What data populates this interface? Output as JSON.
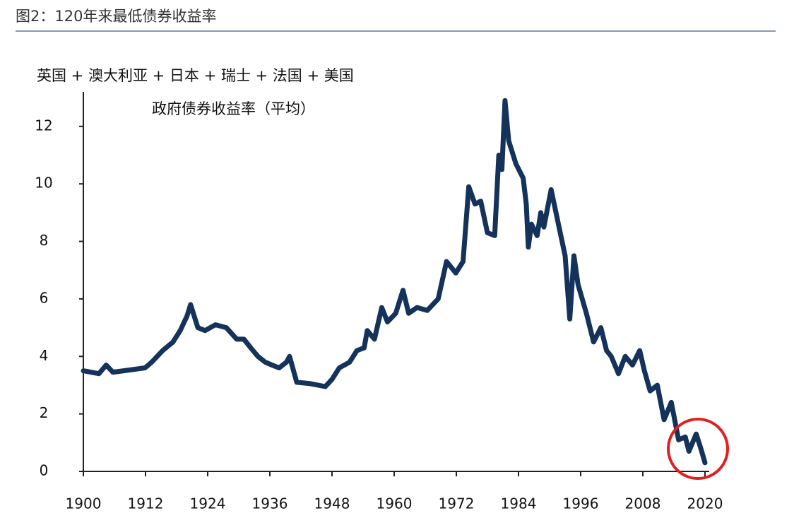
{
  "chart_data": {
    "type": "line",
    "title": "图2：120年来最低债券收益率",
    "subtitle": "英国 + 澳大利亚 + 日本 + 瑞士 + 法国 + 美国",
    "annotation": "政府债券收益率（平均）",
    "color": "#14325a",
    "x": [
      1900,
      1903,
      1904.4,
      1905.7,
      1907.8,
      1909.8,
      1911.9,
      1913.2,
      1915.3,
      1917.3,
      1918.7,
      1920,
      1920.7,
      1922.1,
      1923.5,
      1925.5,
      1927.6,
      1929.6,
      1931,
      1932.3,
      1933.7,
      1935.1,
      1936.4,
      1937.8,
      1939.2,
      1939.8,
      1941.2,
      1943.9,
      1946.7,
      1948,
      1949.4,
      1951.4,
      1952.8,
      1954.2,
      1954.8,
      1956.2,
      1957.6,
      1958.7,
      1960.3,
      1961.7,
      1962.8,
      1964.4,
      1966.4,
      1968.5,
      1970.1,
      1971.9,
      1973.3,
      1974.4,
      1975.6,
      1976.7,
      1978,
      1979.4,
      1980.2,
      1980.8,
      1981.4,
      1982.1,
      1983.5,
      1984.9,
      1985.5,
      1985.9,
      1986.5,
      1987.6,
      1988.3,
      1988.9,
      1990.3,
      1991.7,
      1993,
      1993.9,
      1994.7,
      1995.5,
      1997.1,
      1998.5,
      1999.9,
      2001,
      2001.9,
      2003.3,
      2004.6,
      2006,
      2007.4,
      2008.3,
      2009.4,
      2010.8,
      2012.1,
      2013.5,
      2014.9,
      2016.2,
      2016.9,
      2018.3,
      2019.2,
      2020
    ],
    "values": [
      3.5,
      3.4,
      3.7,
      3.45,
      3.5,
      3.55,
      3.6,
      3.8,
      4.2,
      4.5,
      4.9,
      5.4,
      5.8,
      5.0,
      4.9,
      5.1,
      5.0,
      4.6,
      4.6,
      4.3,
      4.0,
      3.8,
      3.7,
      3.6,
      3.8,
      4.0,
      3.1,
      3.05,
      2.95,
      3.2,
      3.6,
      3.8,
      4.2,
      4.3,
      4.9,
      4.6,
      5.7,
      5.2,
      5.5,
      6.3,
      5.5,
      5.7,
      5.6,
      6.0,
      7.3,
      6.9,
      7.3,
      9.9,
      9.3,
      9.4,
      8.3,
      8.2,
      11.0,
      10.5,
      12.9,
      11.5,
      10.7,
      10.2,
      9.3,
      7.8,
      8.6,
      8.2,
      9.0,
      8.5,
      9.8,
      8.6,
      7.5,
      5.3,
      7.5,
      6.5,
      5.5,
      4.5,
      5.0,
      4.2,
      4.0,
      3.4,
      4.0,
      3.7,
      4.2,
      3.5,
      2.8,
      3.0,
      1.8,
      2.4,
      1.1,
      1.2,
      0.7,
      1.3,
      0.8,
      0.3
    ],
    "xlim": [
      1900,
      2020
    ],
    "xticks": [
      1900,
      1912,
      1924,
      1936,
      1948,
      1960,
      1972,
      1984,
      1996,
      2008,
      2020
    ],
    "ylim": [
      0,
      13.2
    ],
    "yticks": [
      0,
      2,
      4,
      6,
      8,
      10,
      12
    ]
  }
}
